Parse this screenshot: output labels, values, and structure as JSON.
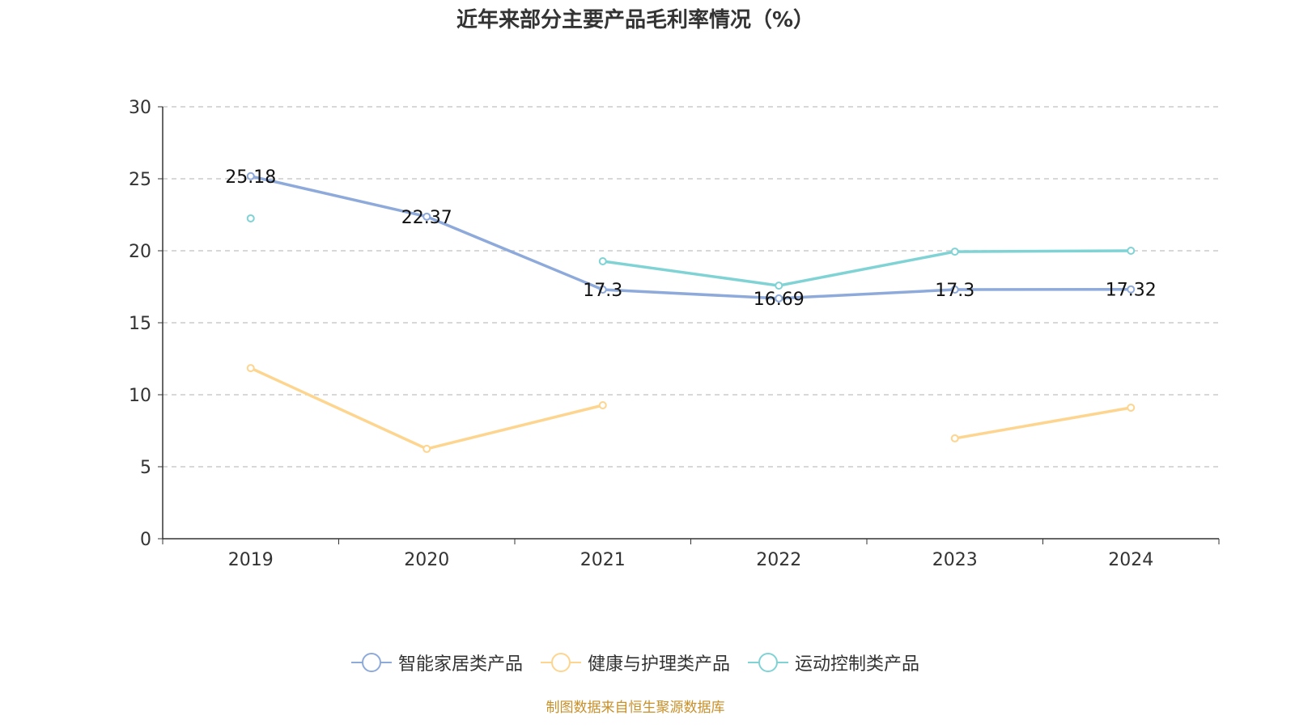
{
  "chart_data": {
    "type": "line",
    "title": "近年来部分主要产品毛利率情况（%）",
    "xlabel": "",
    "ylabel": "",
    "categories": [
      "2019",
      "2020",
      "2021",
      "2022",
      "2023",
      "2024"
    ],
    "ylim": [
      0,
      30
    ],
    "yticks": [
      0,
      5,
      10,
      15,
      20,
      25,
      30
    ],
    "grid": true,
    "legend_position": "bottom",
    "series": [
      {
        "name": "智能家居类产品",
        "color": "#8eaadb",
        "values": [
          25.18,
          22.37,
          17.3,
          16.69,
          17.3,
          17.32
        ],
        "labels": [
          "25.18",
          "22.37",
          "17.3",
          "16.69",
          "17.3",
          "17.32"
        ]
      },
      {
        "name": "健康与护理类产品",
        "color": "#fdd58f",
        "values": [
          11.85,
          6.24,
          9.27,
          null,
          6.97,
          9.1
        ]
      },
      {
        "name": "运动控制类产品",
        "color": "#80d3d5",
        "values": [
          22.25,
          null,
          19.27,
          17.58,
          19.94,
          20.0
        ]
      }
    ]
  },
  "source": "制图数据来自恒生聚源数据库"
}
